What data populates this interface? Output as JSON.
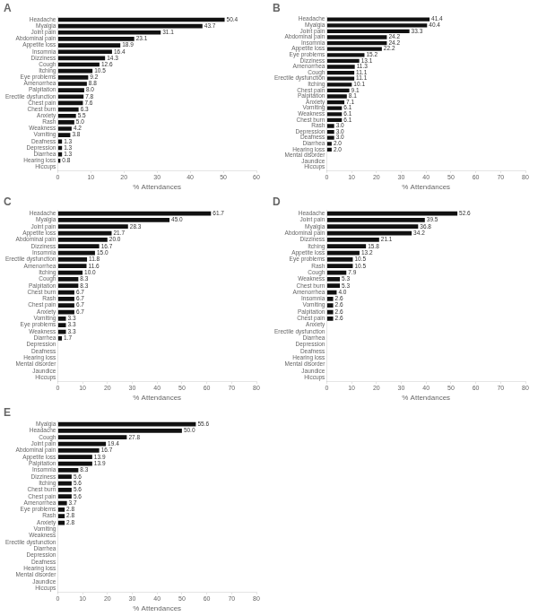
{
  "chart_data": [
    {
      "type": "bar",
      "orientation": "horizontal",
      "title": "A",
      "xlabel": "% Attendances",
      "color": "#111111",
      "grid": false,
      "data_labels": true,
      "categories": [
        "Headache",
        "Myalgia",
        "Joint pain",
        "Abdominal pain",
        "Appetite loss",
        "Insomnia",
        "Dizziness",
        "Cough",
        "Itching",
        "Eye problems",
        "Amenorrhea",
        "Palpitation",
        "Erectile dysfunction",
        "Chest pain",
        "Chest burn",
        "Anxiety",
        "Rash",
        "Weakness",
        "Vomiting",
        "Deafness",
        "Depression",
        "Diarrhea",
        "Hearing loss",
        "Hiccups"
      ],
      "values": [
        50.4,
        43.7,
        31.1,
        23.1,
        18.9,
        16.4,
        14.3,
        12.6,
        10.5,
        9.2,
        8.8,
        8.0,
        7.8,
        7.6,
        6.3,
        5.5,
        5.0,
        4.2,
        3.8,
        1.3,
        1.3,
        1.3,
        0.8,
        0.0
      ],
      "value_labels": [
        "50.4",
        "43.7",
        "31.1",
        "23.1",
        "18.9",
        "16.4",
        "14.3",
        "12.6",
        "10.5",
        "9.2",
        "8.8",
        "8.0",
        "7.8",
        "7.6",
        "6.3",
        "5.5",
        "5.0",
        "4.2",
        "3.8",
        "1.3",
        "1.3",
        "1.3",
        "0.8",
        null
      ],
      "xlim": [
        0,
        60
      ],
      "xticks": [
        0,
        10,
        20,
        30,
        40,
        50,
        60
      ]
    },
    {
      "type": "bar",
      "orientation": "horizontal",
      "title": "B",
      "xlabel": "% Attendances",
      "color": "#111111",
      "grid": false,
      "data_labels": true,
      "categories": [
        "Headache",
        "Myalgia",
        "Joint pain",
        "Abdominal pain",
        "Insomnia",
        "Appetite loss",
        "Eye problems",
        "Dizziness",
        "Amenorrhea",
        "Cough",
        "Erectile dysfunction",
        "Itching",
        "Chest pain",
        "Palpitation",
        "Anxiety",
        "Vomiting",
        "Weakness",
        "Chest burn",
        "Rash",
        "Depression",
        "Deafness",
        "Diarrhea",
        "Hearing loss",
        "Mental disorder",
        "Jaundice",
        "Hiccups"
      ],
      "values": [
        41.4,
        40.4,
        33.3,
        24.2,
        24.2,
        22.2,
        15.2,
        13.1,
        11.3,
        11.1,
        11.1,
        10.1,
        9.1,
        8.1,
        7.1,
        6.1,
        6.1,
        6.1,
        3.0,
        3.0,
        3.0,
        2.0,
        2.0,
        0.0,
        0.0,
        0.0
      ],
      "value_labels": [
        "41.4",
        "40.4",
        "33.3",
        "24.2",
        "24.2",
        "22.2",
        "15.2",
        "13.1",
        "11.3",
        "11.1",
        "11.1",
        "10.1",
        "9.1",
        "8.1",
        "7.1",
        "6.1",
        "6.1",
        "6.1",
        "3.0",
        "3.0",
        "3.0",
        "2.0",
        "2.0",
        null,
        null,
        null
      ],
      "xlim": [
        0,
        80
      ],
      "xticks": [
        0,
        10,
        20,
        30,
        40,
        50,
        60,
        70,
        80
      ]
    },
    {
      "type": "bar",
      "orientation": "horizontal",
      "title": "C",
      "xlabel": "% Attendances",
      "color": "#111111",
      "grid": false,
      "data_labels": true,
      "categories": [
        "Headache",
        "Myalgia",
        "Joint pain",
        "Appetite loss",
        "Abdominal pain",
        "Dizziness",
        "Insomnia",
        "Erectile dysfunction",
        "Amenorrhea",
        "Itching",
        "Cough",
        "Palpitation",
        "Chest burn",
        "Rash",
        "Chest pain",
        "Anxiety",
        "Vomiting",
        "Eye problems",
        "Weakness",
        "Diarrhea",
        "Depression",
        "Deafness",
        "Hearing loss",
        "Mental disorder",
        "Jaundice",
        "Hiccups"
      ],
      "values": [
        61.7,
        45.0,
        28.3,
        21.7,
        20.0,
        16.7,
        15.0,
        11.8,
        11.6,
        10.0,
        8.3,
        8.3,
        6.7,
        6.7,
        6.7,
        6.7,
        3.3,
        3.3,
        3.3,
        1.7,
        0.0,
        0.0,
        0.0,
        0.0,
        0.0,
        0.0
      ],
      "value_labels": [
        "61.7",
        "45.0",
        "28.3",
        "21.7",
        "20.0",
        "16.7",
        "15.0",
        "11.8",
        "11.6",
        "10.0",
        "8.3",
        "8.3",
        "6.7",
        "6.7",
        "6.7",
        "6.7",
        "3.3",
        "3.3",
        "3.3",
        "1.7",
        null,
        null,
        null,
        null,
        null,
        null
      ],
      "xlim": [
        0,
        80
      ],
      "xticks": [
        0,
        10,
        20,
        30,
        40,
        50,
        60,
        70,
        80
      ]
    },
    {
      "type": "bar",
      "orientation": "horizontal",
      "title": "D",
      "xlabel": "% Attendances",
      "color": "#111111",
      "grid": false,
      "data_labels": true,
      "categories": [
        "Headache",
        "Joint pain",
        "Myalgia",
        "Abdominal pain",
        "Dizziness",
        "Itching",
        "Appetite loss",
        "Eye problems",
        "Rash",
        "Cough",
        "Weakness",
        "Chest burn",
        "Amenorrhea",
        "Insomnia",
        "Vomiting",
        "Palpitation",
        "Chest pain",
        "Anxiety",
        "Erectile dysfunction",
        "Diarrhea",
        "Depression",
        "Deafness",
        "Hearing loss",
        "Mental disorder",
        "Jaundice",
        "Hiccups"
      ],
      "values": [
        52.6,
        39.5,
        36.8,
        34.2,
        21.1,
        15.8,
        13.2,
        10.5,
        10.5,
        7.9,
        5.3,
        5.3,
        4.0,
        2.6,
        2.6,
        2.6,
        2.6,
        0.0,
        0.0,
        0.0,
        0.0,
        0.0,
        0.0,
        0.0,
        0.0,
        0.0
      ],
      "value_labels": [
        "52.6",
        "39.5",
        "36.8",
        "34.2",
        "21.1",
        "15.8",
        "13.2",
        "10.5",
        "10.5",
        "7.9",
        "5.3",
        "5.3",
        "4.0",
        "2.6",
        "2.6",
        "2.6",
        "2.6",
        null,
        null,
        null,
        null,
        null,
        null,
        null,
        null,
        null
      ],
      "xlim": [
        0,
        80
      ],
      "xticks": [
        0,
        10,
        20,
        30,
        40,
        50,
        60,
        70,
        80
      ]
    },
    {
      "type": "bar",
      "orientation": "horizontal",
      "title": "E",
      "xlabel": "% Attendances",
      "color": "#111111",
      "grid": false,
      "data_labels": true,
      "categories": [
        "Myalgia",
        "Headache",
        "Cough",
        "Joint pain",
        "Abdominal pain",
        "Appetite loss",
        "Palpitation",
        "Insomnia",
        "Dizziness",
        "Itching",
        "Chest burn",
        "Chest pain",
        "Amenorrhea",
        "Eye problems",
        "Rash",
        "Anxiety",
        "Vomiting",
        "Weakness",
        "Erectile dysfunction",
        "Diarrhea",
        "Depression",
        "Deafness",
        "Hearing loss",
        "Mental disorder",
        "Jaundice",
        "Hiccups"
      ],
      "values": [
        55.6,
        50.0,
        27.8,
        19.4,
        16.7,
        13.9,
        13.9,
        8.3,
        5.6,
        5.6,
        5.6,
        5.6,
        3.7,
        2.8,
        2.8,
        2.8,
        0.0,
        0.0,
        0.0,
        0.0,
        0.0,
        0.0,
        0.0,
        0.0,
        0.0,
        0.0
      ],
      "value_labels": [
        "55.6",
        "50.0",
        "27.8",
        "19.4",
        "16.7",
        "13.9",
        "13.9",
        "8.3",
        "5.6",
        "5.6",
        "5.6",
        "5.6",
        "3.7",
        "2.8",
        "2.8",
        "2.8",
        null,
        null,
        null,
        null,
        null,
        null,
        null,
        null,
        null,
        null
      ],
      "xlim": [
        0,
        80
      ],
      "xticks": [
        0,
        10,
        20,
        30,
        40,
        50,
        60,
        70,
        80
      ]
    }
  ]
}
